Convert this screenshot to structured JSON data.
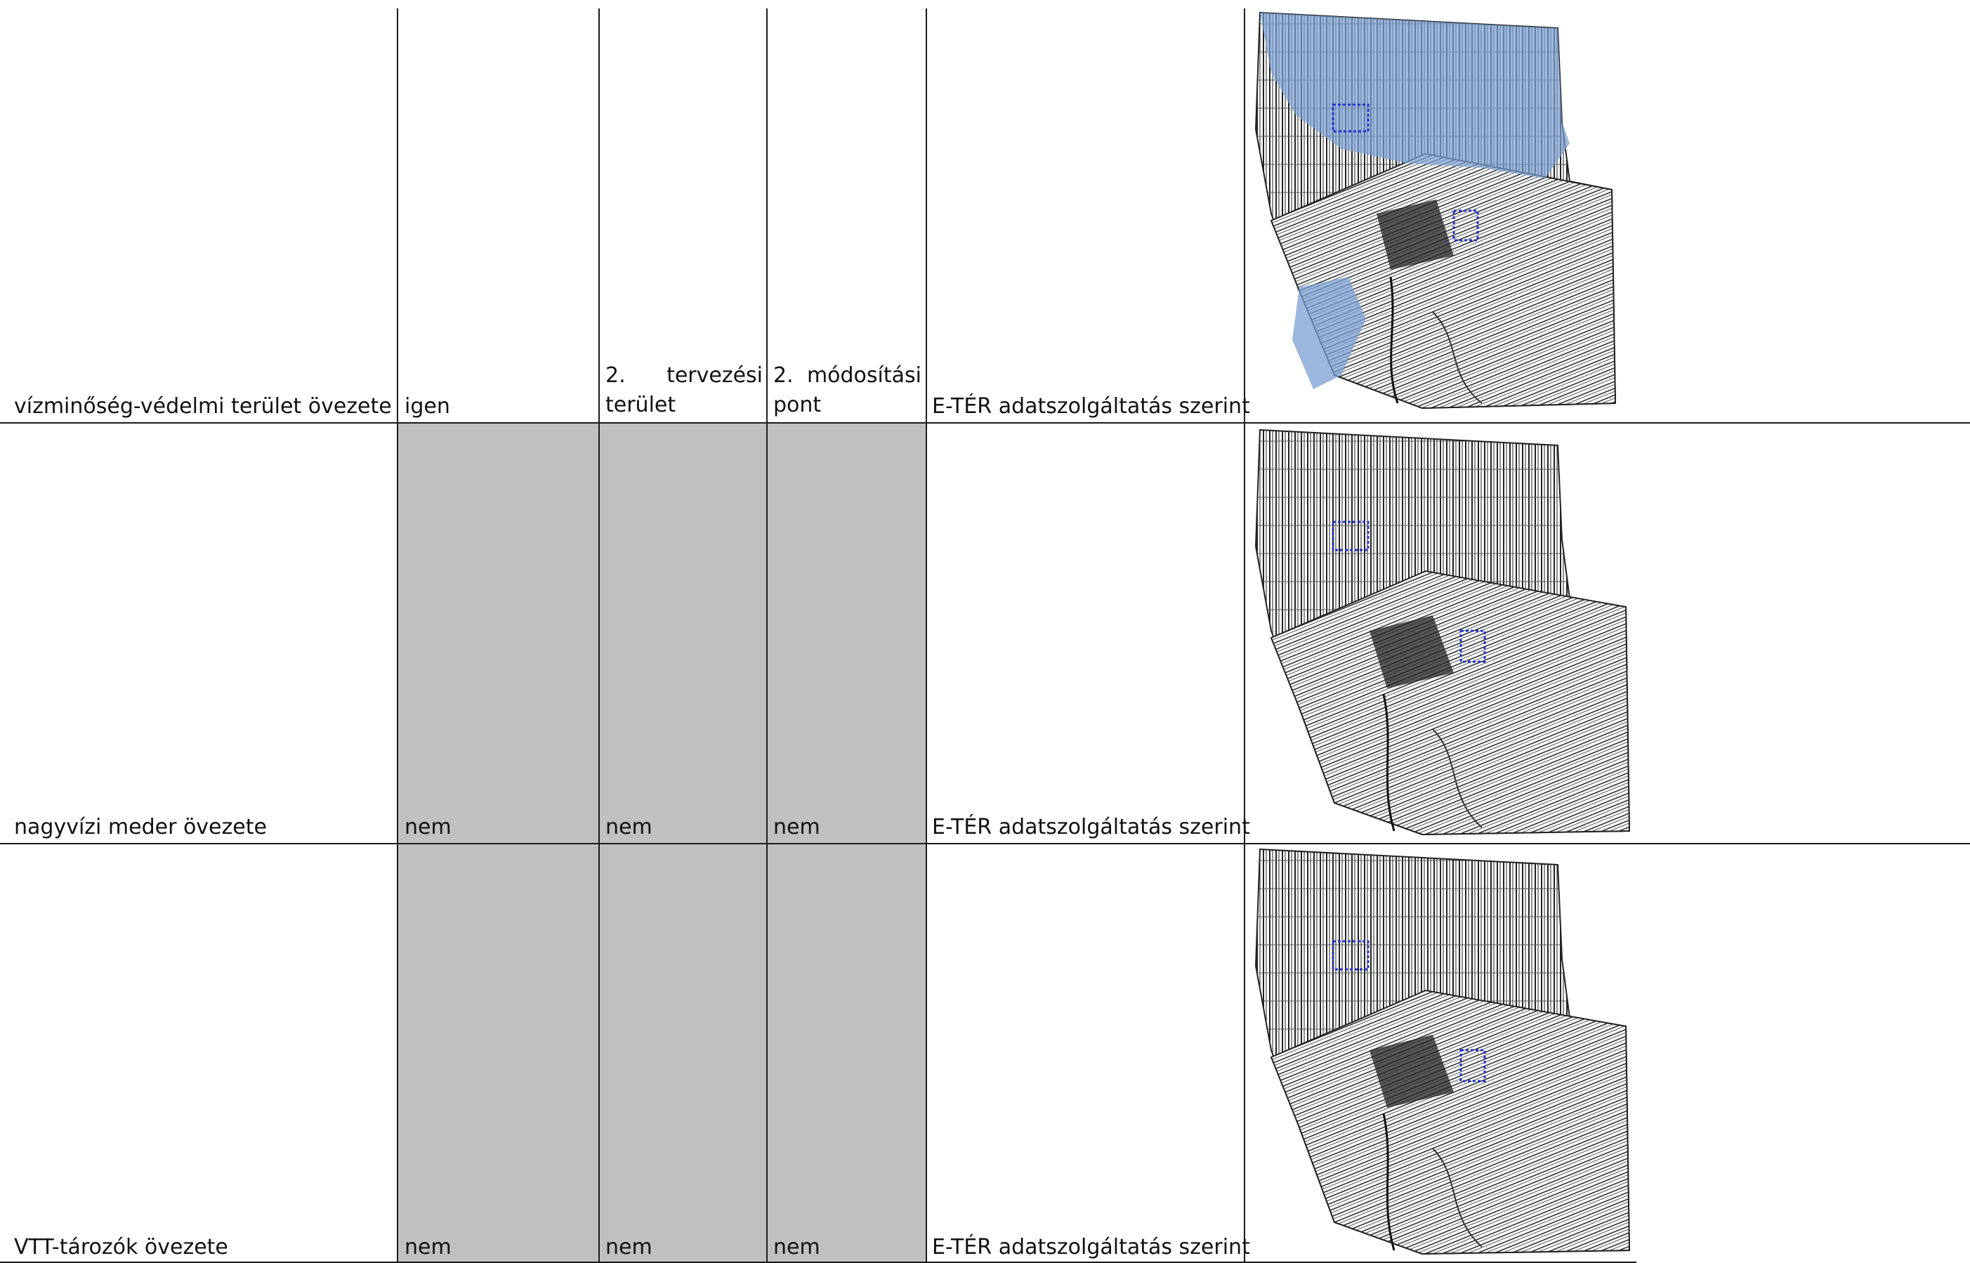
{
  "rows": [
    {
      "zone": "vízminőség-védelmi terület övezete",
      "affected": "igen",
      "area_line1_a": "2.",
      "area_line1_b": "tervezési",
      "area_line2": "terület",
      "point_line1_a": "2.",
      "point_line1_b": "módosítási",
      "point_line2": "pont",
      "source": "E-TÉR adatszolgáltatás szerint",
      "map_overlay": "blue-zone"
    },
    {
      "zone": "nagyvízi meder övezete",
      "affected": "nem",
      "area": "nem",
      "point": "nem",
      "source": "E-TÉR adatszolgáltatás szerint",
      "map_overlay": "none"
    },
    {
      "zone": "VTT-tározók övezete",
      "affected": "nem",
      "area": "nem",
      "point": "nem",
      "source": "E-TÉR adatszolgáltatás szerint",
      "map_overlay": "none"
    }
  ],
  "colors": {
    "grey_cell": "#c0c0c0",
    "zone_fill": "#7a9fd1",
    "boundary_marker": "#2233cc"
  }
}
